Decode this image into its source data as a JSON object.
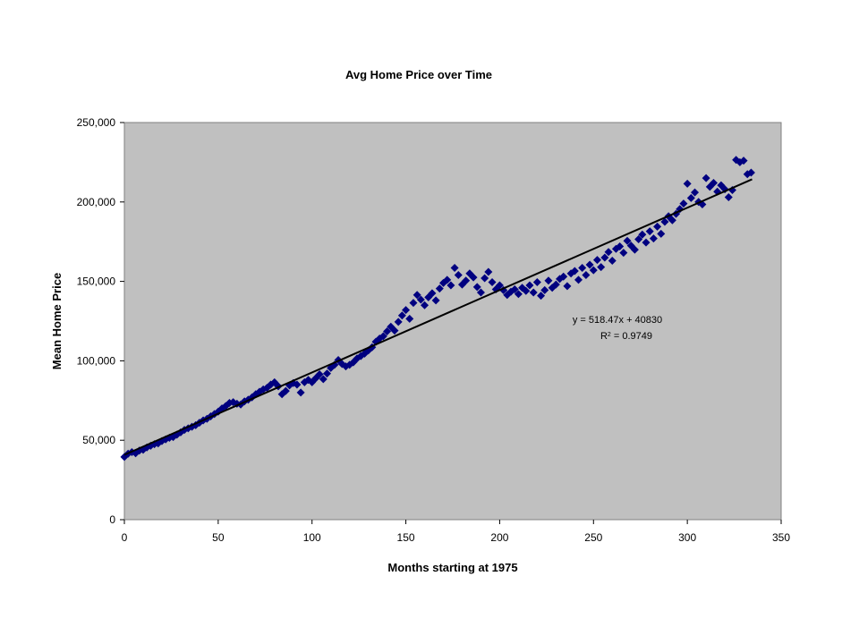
{
  "chart_data": {
    "type": "scatter",
    "title": "Avg Home Price over Time",
    "xlabel": "Months starting at 1975",
    "ylabel": "Mean Home Price",
    "xlim": [
      0,
      350
    ],
    "ylim": [
      0,
      250000
    ],
    "x_ticks": [
      "0",
      "50",
      "100",
      "150",
      "200",
      "250",
      "300",
      "350"
    ],
    "y_ticks": [
      "0",
      "50,000",
      "100,000",
      "150,000",
      "200,000",
      "250,000"
    ],
    "grid": false,
    "legend": "none",
    "plot_background": "#C0C0C0",
    "marker_color": "#000080",
    "trendline": {
      "type": "linear",
      "slope": 518.47,
      "intercept": 40830,
      "equation_label": "y = 518.47x + 40830",
      "r2_prefix": "R",
      "r2_value_label": " = 0.9749"
    },
    "series": [
      {
        "values": [
          [
            0,
            39500
          ],
          [
            2,
            41500
          ],
          [
            4,
            42500
          ],
          [
            6,
            41800
          ],
          [
            8,
            43500
          ],
          [
            10,
            44000
          ],
          [
            12,
            45500
          ],
          [
            14,
            46500
          ],
          [
            16,
            47500
          ],
          [
            18,
            48000
          ],
          [
            20,
            49500
          ],
          [
            22,
            50500
          ],
          [
            24,
            51500
          ],
          [
            26,
            52000
          ],
          [
            28,
            53500
          ],
          [
            30,
            55000
          ],
          [
            32,
            56500
          ],
          [
            34,
            57500
          ],
          [
            36,
            58500
          ],
          [
            38,
            59500
          ],
          [
            40,
            61000
          ],
          [
            42,
            62500
          ],
          [
            44,
            63500
          ],
          [
            46,
            65000
          ],
          [
            48,
            66500
          ],
          [
            50,
            68000
          ],
          [
            52,
            70000
          ],
          [
            54,
            71500
          ],
          [
            56,
            73500
          ],
          [
            58,
            74000
          ],
          [
            60,
            73000
          ],
          [
            62,
            72500
          ],
          [
            64,
            74500
          ],
          [
            66,
            75500
          ],
          [
            68,
            77000
          ],
          [
            70,
            79000
          ],
          [
            72,
            80500
          ],
          [
            74,
            82000
          ],
          [
            76,
            83000
          ],
          [
            78,
            85000
          ],
          [
            80,
            86500
          ],
          [
            82,
            84000
          ],
          [
            84,
            79000
          ],
          [
            86,
            81000
          ],
          [
            88,
            84500
          ],
          [
            90,
            86000
          ],
          [
            92,
            85000
          ],
          [
            94,
            80000
          ],
          [
            96,
            86500
          ],
          [
            98,
            88000
          ],
          [
            100,
            86500
          ],
          [
            102,
            89000
          ],
          [
            104,
            91500
          ],
          [
            106,
            88500
          ],
          [
            108,
            92000
          ],
          [
            110,
            95500
          ],
          [
            112,
            97500
          ],
          [
            114,
            100500
          ],
          [
            116,
            98000
          ],
          [
            118,
            96500
          ],
          [
            120,
            97500
          ],
          [
            122,
            99000
          ],
          [
            124,
            101500
          ],
          [
            126,
            103000
          ],
          [
            128,
            104500
          ],
          [
            130,
            106500
          ],
          [
            132,
            108500
          ],
          [
            134,
            112000
          ],
          [
            136,
            114000
          ],
          [
            138,
            115500
          ],
          [
            140,
            118500
          ],
          [
            142,
            121500
          ],
          [
            144,
            119000
          ],
          [
            146,
            124500
          ],
          [
            148,
            128500
          ],
          [
            150,
            132000
          ],
          [
            152,
            126500
          ],
          [
            154,
            136500
          ],
          [
            156,
            141500
          ],
          [
            158,
            138500
          ],
          [
            160,
            135000
          ],
          [
            162,
            140000
          ],
          [
            164,
            142500
          ],
          [
            166,
            138000
          ],
          [
            168,
            145500
          ],
          [
            170,
            149000
          ],
          [
            172,
            151000
          ],
          [
            174,
            147500
          ],
          [
            176,
            158500
          ],
          [
            178,
            154000
          ],
          [
            180,
            148000
          ],
          [
            182,
            150500
          ],
          [
            184,
            155000
          ],
          [
            186,
            152500
          ],
          [
            188,
            146500
          ],
          [
            190,
            143000
          ],
          [
            192,
            152000
          ],
          [
            194,
            156000
          ],
          [
            196,
            149500
          ],
          [
            198,
            145000
          ],
          [
            200,
            147500
          ],
          [
            202,
            144500
          ],
          [
            204,
            141500
          ],
          [
            206,
            143500
          ],
          [
            208,
            145000
          ],
          [
            210,
            142000
          ],
          [
            212,
            146000
          ],
          [
            214,
            144000
          ],
          [
            216,
            147500
          ],
          [
            218,
            143000
          ],
          [
            220,
            149500
          ],
          [
            222,
            141000
          ],
          [
            224,
            144500
          ],
          [
            226,
            150500
          ],
          [
            228,
            146000
          ],
          [
            230,
            148000
          ],
          [
            232,
            151500
          ],
          [
            234,
            153000
          ],
          [
            236,
            147000
          ],
          [
            238,
            155000
          ],
          [
            240,
            156500
          ],
          [
            242,
            151000
          ],
          [
            244,
            158500
          ],
          [
            246,
            154000
          ],
          [
            248,
            160500
          ],
          [
            250,
            157000
          ],
          [
            252,
            163500
          ],
          [
            254,
            159000
          ],
          [
            256,
            165000
          ],
          [
            258,
            168500
          ],
          [
            260,
            163000
          ],
          [
            262,
            170500
          ],
          [
            264,
            172000
          ],
          [
            266,
            168000
          ],
          [
            268,
            175500
          ],
          [
            270,
            172500
          ],
          [
            272,
            170000
          ],
          [
            274,
            176500
          ],
          [
            276,
            179500
          ],
          [
            278,
            174500
          ],
          [
            280,
            181500
          ],
          [
            282,
            177000
          ],
          [
            284,
            184500
          ],
          [
            286,
            180000
          ],
          [
            288,
            187500
          ],
          [
            290,
            191000
          ],
          [
            292,
            188500
          ],
          [
            294,
            192500
          ],
          [
            296,
            195500
          ],
          [
            298,
            199000
          ],
          [
            300,
            211500
          ],
          [
            302,
            202500
          ],
          [
            304,
            206000
          ],
          [
            306,
            200000
          ],
          [
            308,
            198500
          ],
          [
            310,
            215000
          ],
          [
            312,
            209500
          ],
          [
            314,
            212000
          ],
          [
            316,
            206500
          ],
          [
            318,
            210500
          ],
          [
            320,
            208000
          ],
          [
            322,
            203000
          ],
          [
            324,
            207500
          ],
          [
            326,
            226500
          ],
          [
            328,
            225000
          ],
          [
            330,
            226000
          ],
          [
            332,
            217500
          ],
          [
            334,
            218500
          ]
        ]
      }
    ]
  }
}
